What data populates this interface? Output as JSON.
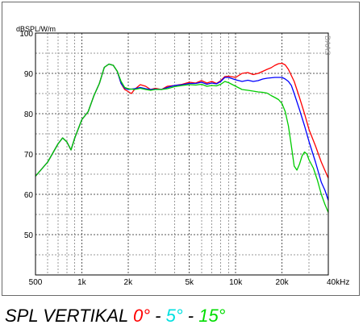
{
  "chart_data": {
    "type": "line",
    "ylabel": "dBSPL/W/m",
    "xlabel": "",
    "x_scale": "log",
    "xlim": [
      500,
      40000
    ],
    "ylim": [
      40,
      100
    ],
    "x_ticks": [
      {
        "value": 500,
        "label": "500"
      },
      {
        "value": 1000,
        "label": "1k"
      },
      {
        "value": 2000,
        "label": "2k"
      },
      {
        "value": 5000,
        "label": "5k"
      },
      {
        "value": 10000,
        "label": "10k"
      },
      {
        "value": 20000,
        "label": "20k"
      },
      {
        "value": 40000,
        "label": "40kHz"
      }
    ],
    "y_ticks": [
      {
        "value": 100,
        "label": "100"
      },
      {
        "value": 90,
        "label": "90"
      },
      {
        "value": 80,
        "label": "80"
      },
      {
        "value": 70,
        "label": "70"
      },
      {
        "value": 60,
        "label": "60"
      },
      {
        "value": 50,
        "label": "50"
      }
    ],
    "grid": true,
    "watermark": "DAAS",
    "series": [
      {
        "color": "#ff0000",
        "points": [
          [
            500,
            64.5
          ],
          [
            600,
            68
          ],
          [
            700,
            72.5
          ],
          [
            750,
            74
          ],
          [
            800,
            73
          ],
          [
            850,
            71
          ],
          [
            900,
            74
          ],
          [
            1000,
            78.5
          ],
          [
            1100,
            80.5
          ],
          [
            1200,
            84.5
          ],
          [
            1300,
            87.5
          ],
          [
            1400,
            91.5
          ],
          [
            1500,
            92.3
          ],
          [
            1600,
            92
          ],
          [
            1700,
            90.5
          ],
          [
            1800,
            87.5
          ],
          [
            1900,
            86
          ],
          [
            2000,
            85.5
          ],
          [
            2100,
            85
          ],
          [
            2200,
            86
          ],
          [
            2400,
            87.2
          ],
          [
            2600,
            86.8
          ],
          [
            2800,
            86
          ],
          [
            3000,
            86.3
          ],
          [
            3300,
            86
          ],
          [
            3600,
            86.8
          ],
          [
            4000,
            87
          ],
          [
            4500,
            87.3
          ],
          [
            5000,
            87.8
          ],
          [
            5500,
            87.6
          ],
          [
            6000,
            88.2
          ],
          [
            6500,
            87.6
          ],
          [
            7000,
            88
          ],
          [
            7500,
            87.5
          ],
          [
            8000,
            88.2
          ],
          [
            8500,
            89.2
          ],
          [
            9000,
            89.3
          ],
          [
            10000,
            89
          ],
          [
            11000,
            90
          ],
          [
            12000,
            90.2
          ],
          [
            13000,
            89.7
          ],
          [
            14000,
            90
          ],
          [
            15000,
            90.5
          ],
          [
            16000,
            91
          ],
          [
            17000,
            91.4
          ],
          [
            18000,
            92
          ],
          [
            19000,
            92.4
          ],
          [
            20000,
            92.5
          ],
          [
            21000,
            92.1
          ],
          [
            22000,
            91
          ],
          [
            24000,
            88
          ],
          [
            26000,
            84
          ],
          [
            28000,
            80
          ],
          [
            30000,
            76
          ],
          [
            33000,
            72
          ],
          [
            36000,
            68
          ],
          [
            40000,
            64
          ]
        ]
      },
      {
        "color": "#0000ff",
        "points": [
          [
            500,
            64.5
          ],
          [
            600,
            68
          ],
          [
            700,
            72.5
          ],
          [
            750,
            74
          ],
          [
            800,
            73
          ],
          [
            850,
            71
          ],
          [
            900,
            74
          ],
          [
            1000,
            78.5
          ],
          [
            1100,
            80.5
          ],
          [
            1200,
            84.5
          ],
          [
            1300,
            87.5
          ],
          [
            1400,
            91.5
          ],
          [
            1500,
            92.3
          ],
          [
            1600,
            92
          ],
          [
            1700,
            90.5
          ],
          [
            1800,
            87.5
          ],
          [
            1900,
            86.3
          ],
          [
            2000,
            86
          ],
          [
            2200,
            86.2
          ],
          [
            2400,
            86.5
          ],
          [
            2600,
            86.2
          ],
          [
            2800,
            86
          ],
          [
            3000,
            86.1
          ],
          [
            3300,
            86
          ],
          [
            3600,
            86.5
          ],
          [
            4000,
            87
          ],
          [
            4500,
            87.2
          ],
          [
            5000,
            87.5
          ],
          [
            5500,
            87.5
          ],
          [
            6000,
            87.8
          ],
          [
            6500,
            87.3
          ],
          [
            7000,
            87.6
          ],
          [
            7500,
            87.4
          ],
          [
            8000,
            88
          ],
          [
            8500,
            89
          ],
          [
            9000,
            89
          ],
          [
            10000,
            88.4
          ],
          [
            11000,
            88
          ],
          [
            12000,
            88.3
          ],
          [
            13000,
            88
          ],
          [
            14000,
            88.2
          ],
          [
            15000,
            88.6
          ],
          [
            16000,
            88.8
          ],
          [
            18000,
            89
          ],
          [
            20000,
            89
          ],
          [
            21000,
            88.6
          ],
          [
            22000,
            88
          ],
          [
            23000,
            87
          ],
          [
            24000,
            85
          ],
          [
            26000,
            81
          ],
          [
            28000,
            77
          ],
          [
            30000,
            73
          ],
          [
            33000,
            68
          ],
          [
            36000,
            63
          ],
          [
            38000,
            61
          ],
          [
            40000,
            58.5
          ]
        ]
      },
      {
        "color": "#00cc00",
        "points": [
          [
            500,
            64.5
          ],
          [
            600,
            68
          ],
          [
            700,
            72.5
          ],
          [
            750,
            74
          ],
          [
            800,
            73
          ],
          [
            850,
            71
          ],
          [
            900,
            74
          ],
          [
            1000,
            78.5
          ],
          [
            1100,
            80.5
          ],
          [
            1200,
            84.5
          ],
          [
            1300,
            87.5
          ],
          [
            1400,
            91.5
          ],
          [
            1500,
            92.3
          ],
          [
            1600,
            92
          ],
          [
            1700,
            90.5
          ],
          [
            1800,
            88
          ],
          [
            1900,
            86.5
          ],
          [
            2000,
            86.2
          ],
          [
            2200,
            86
          ],
          [
            2400,
            86.3
          ],
          [
            2600,
            86
          ],
          [
            2800,
            85.8
          ],
          [
            3000,
            86
          ],
          [
            3300,
            86
          ],
          [
            3600,
            86.2
          ],
          [
            4000,
            86.7
          ],
          [
            4500,
            87
          ],
          [
            5000,
            87.2
          ],
          [
            5500,
            87.1
          ],
          [
            6000,
            87.3
          ],
          [
            6500,
            86.8
          ],
          [
            7000,
            87
          ],
          [
            7500,
            86.9
          ],
          [
            8000,
            87.3
          ],
          [
            8500,
            88
          ],
          [
            9000,
            87.7
          ],
          [
            10000,
            86.8
          ],
          [
            11000,
            86
          ],
          [
            12000,
            85.8
          ],
          [
            13000,
            85.6
          ],
          [
            14000,
            85.4
          ],
          [
            15000,
            85.3
          ],
          [
            16000,
            85.1
          ],
          [
            17000,
            84.5
          ],
          [
            18000,
            84
          ],
          [
            19000,
            83.5
          ],
          [
            20000,
            82.5
          ],
          [
            21000,
            80.5
          ],
          [
            22000,
            77
          ],
          [
            23000,
            72
          ],
          [
            24000,
            67
          ],
          [
            25000,
            66
          ],
          [
            26000,
            67.5
          ],
          [
            27000,
            69.5
          ],
          [
            28000,
            70.5
          ],
          [
            29000,
            70
          ],
          [
            30000,
            68.5
          ],
          [
            32000,
            66.5
          ],
          [
            34000,
            63.5
          ],
          [
            36000,
            60
          ],
          [
            38000,
            57.5
          ],
          [
            40000,
            55.5
          ]
        ]
      }
    ],
    "caption": {
      "prefix": "SPL VERTIKAL ",
      "parts": [
        {
          "text": "0°",
          "color": "#ff0000"
        },
        {
          "text": " - ",
          "color": "#000000"
        },
        {
          "text": "5°",
          "color": "#00e0e0"
        },
        {
          "text": " - ",
          "color": "#000000"
        },
        {
          "text": "15°",
          "color": "#00dd00"
        }
      ]
    }
  }
}
